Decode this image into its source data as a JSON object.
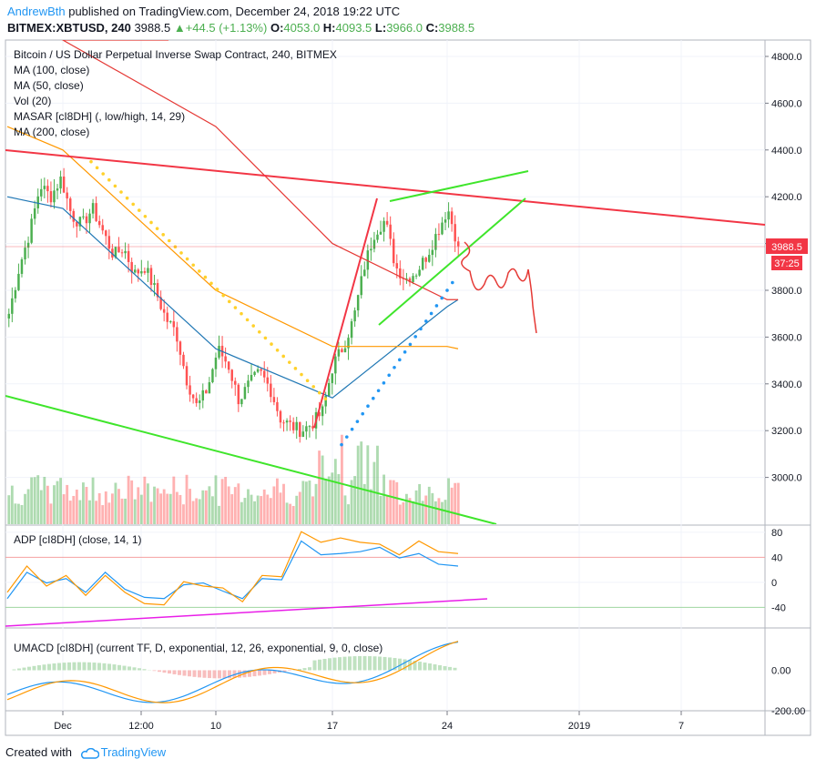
{
  "header": {
    "author": "AndrewBth",
    "published_text": "published on TradingView.com, December 24, 2018 19:22 UTC",
    "symbol": "BITMEX:XBTUSD, 240",
    "price": "3988.5",
    "change_text": "+44.5 (+1.13%)",
    "o_label": "O:",
    "o_value": "4053.0",
    "h_label": "H:",
    "h_value": "4093.5",
    "l_label": "L:",
    "l_value": "3966.0",
    "c_label": "C:",
    "c_value": "3988.5"
  },
  "indicators": [
    "Bitcoin / US Dollar Perpetual Inverse Swap Contract, 240, BITMEX",
    "MA (100, close)",
    "MA (50, close)",
    "Vol (20)",
    "MASAR [cI8DH] (, low/high, 14, 29)",
    "MA (200, close)"
  ],
  "price_badge": "3988.5",
  "time_badge": "37:25",
  "footer": {
    "created_with": "Created with",
    "brand": "TradingView"
  },
  "colors": {
    "up": "#4caf50",
    "down": "#ff5252",
    "ma100": "#ff9800",
    "ma50": "#1f77b4",
    "ma200": "#e53935",
    "masar_yellow": "#ffd12b",
    "masar_blue": "#2196f3",
    "trend_red": "#f23645",
    "trend_green": "#3fe52b",
    "adp_line": "#e91ee8"
  },
  "chart_data": [
    {
      "type": "line",
      "panel": "price",
      "title": "Bitcoin / US Dollar Perpetual Inverse Swap Contract, 240, BITMEX",
      "y_ticks": [
        "4800.0",
        "4600.0",
        "4400.0",
        "4200.0",
        "4000.0",
        "3800.0",
        "3600.0",
        "3400.0",
        "3200.0",
        "3000.0"
      ],
      "x_ticks": [
        "Dec",
        "12:00",
        "10",
        "17",
        "24",
        "2019",
        "7"
      ],
      "ylim": [
        2800,
        4870
      ],
      "series": [
        {
          "name": "MA (50, close)",
          "x": [
            "Dec",
            "10",
            "17",
            "24"
          ],
          "values": [
            4150,
            3550,
            3340,
            3730
          ]
        },
        {
          "name": "MA (100, close)",
          "x": [
            "Dec",
            "10",
            "17",
            "24"
          ],
          "values": [
            4400,
            3800,
            3560,
            3560
          ]
        },
        {
          "name": "MA (200, close)",
          "x": [
            "Dec",
            "10",
            "17",
            "24"
          ],
          "values": [
            4870,
            4500,
            4000,
            3760
          ]
        }
      ],
      "close_approx": [
        3700,
        3900,
        4050,
        4250,
        4200,
        4280,
        4120,
        4080,
        4150,
        4050,
        3950,
        3980,
        3870,
        3900,
        3800,
        3680,
        3620,
        3420,
        3300,
        3380,
        3550,
        3480,
        3330,
        3400,
        3450,
        3380,
        3250,
        3220,
        3200,
        3230,
        3280,
        3480,
        3560,
        3680,
        3900,
        4050,
        4100,
        3900,
        3850,
        3880,
        3950,
        4050,
        4150,
        3988.5
      ],
      "last_price": 3988.5
    },
    {
      "type": "line",
      "panel": "ADP",
      "title": "ADP [cI8DH] (close, 14, 1)",
      "y_ticks": [
        "80",
        "40",
        "0",
        "-40"
      ],
      "ylim": [
        -70,
        90
      ],
      "series": [
        {
          "name": "",
          "values": [
            -20,
            10,
            5,
            0,
            -10,
            10,
            -5,
            -30,
            -20,
            -10,
            5,
            -20,
            -20,
            0,
            10,
            60,
            50,
            40,
            55,
            50,
            45,
            40,
            35,
            20
          ]
        },
        {
          "name": "",
          "values": [
            -10,
            20,
            0,
            5,
            -15,
            5,
            -10,
            -40,
            -30,
            -5,
            0,
            -15,
            -25,
            5,
            15,
            75,
            70,
            65,
            70,
            55,
            50,
            60,
            55,
            40
          ]
        }
      ]
    },
    {
      "type": "line",
      "panel": "UMACD",
      "title": "UMACD [cI8DH] (current TF, D, exponential, 12, 26, exponential, 9, 0, close)",
      "y_ticks": [
        "0.00",
        "-200.00"
      ],
      "ylim": [
        -200,
        200
      ]
    }
  ]
}
